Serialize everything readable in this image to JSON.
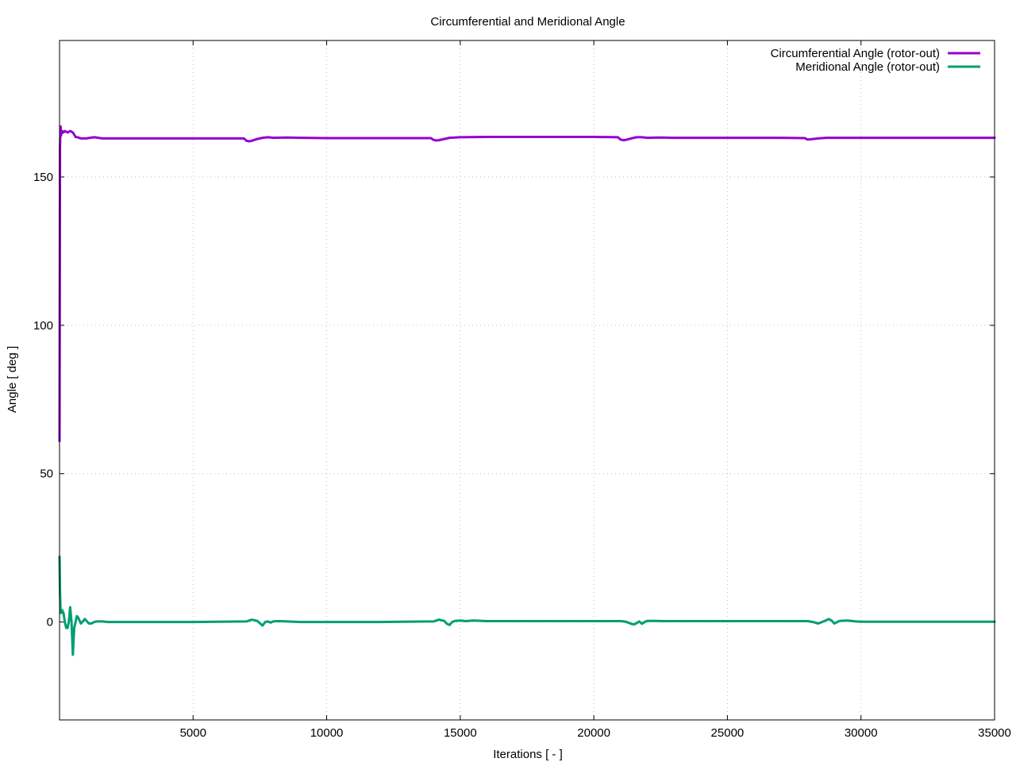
{
  "chart_data": {
    "type": "line",
    "title": "Circumferential and Meridional Angle",
    "xlabel": "Iterations [ - ]",
    "ylabel": "Angle [ deg ]",
    "xlim": [
      1,
      35000
    ],
    "ylim": [
      -33,
      196
    ],
    "x_ticks": [
      5000,
      10000,
      15000,
      20000,
      25000,
      30000,
      35000
    ],
    "y_ticks": [
      0,
      50,
      100,
      150
    ],
    "grid": true,
    "legend_position": "top-right",
    "series": [
      {
        "name": "Circumferential Angle (rotor-out)",
        "color": "#9400d3",
        "x": [
          1,
          20,
          40,
          60,
          80,
          100,
          150,
          200,
          300,
          400,
          500,
          600,
          700,
          800,
          1000,
          1300,
          1600,
          2000,
          3000,
          5000,
          6900,
          7000,
          7100,
          7200,
          7400,
          7600,
          7800,
          8000,
          8500,
          9000,
          10000,
          12000,
          13900,
          14000,
          14100,
          14200,
          14400,
          14600,
          14800,
          15000,
          16000,
          18000,
          20000,
          20900,
          21000,
          21100,
          21200,
          21400,
          21600,
          21800,
          22000,
          22500,
          23000,
          25000,
          27000,
          27900,
          28000,
          28100,
          28200,
          28400,
          28700,
          29000,
          29500,
          30000,
          32000,
          34000,
          35000
        ],
        "y": [
          61,
          160,
          167,
          164,
          165,
          165.5,
          165,
          165.5,
          165,
          165.5,
          165,
          163.5,
          163.3,
          163,
          163,
          163.4,
          163,
          163,
          163,
          163,
          163,
          162.2,
          162,
          162.2,
          162.8,
          163.2,
          163.4,
          163.2,
          163.3,
          163.2,
          163.1,
          163.1,
          163.1,
          162.5,
          162.3,
          162.4,
          162.8,
          163.2,
          163.3,
          163.4,
          163.5,
          163.5,
          163.5,
          163.4,
          162.6,
          162.4,
          162.5,
          163,
          163.4,
          163.4,
          163.2,
          163.3,
          163.2,
          163.2,
          163.2,
          163.1,
          162.6,
          162.7,
          162.8,
          163,
          163.2,
          163.2,
          163.2,
          163.2,
          163.2,
          163.2,
          163.2
        ]
      },
      {
        "name": "Meridional Angle (rotor-out)",
        "color": "#009e73",
        "x": [
          1,
          20,
          40,
          60,
          100,
          150,
          200,
          250,
          300,
          350,
          400,
          450,
          500,
          550,
          600,
          650,
          700,
          750,
          800,
          850,
          900,
          950,
          1000,
          1100,
          1200,
          1300,
          1400,
          1600,
          1800,
          2000,
          2500,
          3000,
          5000,
          7000,
          7200,
          7400,
          7500,
          7600,
          7700,
          7800,
          7900,
          8000,
          8200,
          8500,
          9000,
          10000,
          12000,
          14000,
          14200,
          14400,
          14500,
          14600,
          14700,
          14800,
          15000,
          15200,
          15500,
          16000,
          18000,
          20000,
          21000,
          21200,
          21400,
          21500,
          21600,
          21700,
          21800,
          21900,
          22000,
          22300,
          22600,
          23000,
          25000,
          27000,
          28000,
          28200,
          28400,
          28600,
          28800,
          28900,
          29000,
          29200,
          29500,
          29800,
          30000,
          32000,
          35000
        ],
        "y": [
          22,
          10,
          4,
          3,
          4,
          3,
          0,
          -2,
          -2,
          0,
          5,
          0,
          -11,
          -2,
          0,
          2,
          1.5,
          0.5,
          -0.5,
          0,
          0.5,
          1,
          0.5,
          -0.5,
          -0.5,
          0,
          0.2,
          0.2,
          0,
          0,
          0,
          0,
          0,
          0.2,
          0.8,
          0.4,
          -0.4,
          -1.2,
          0,
          0.2,
          -0.2,
          0.2,
          0.3,
          0.2,
          0,
          0,
          0,
          0.2,
          0.8,
          0.4,
          -0.6,
          -1,
          0,
          0.4,
          0.5,
          0.3,
          0.5,
          0.3,
          0.3,
          0.3,
          0.3,
          0.1,
          -0.6,
          -0.8,
          -0.4,
          0.2,
          -0.6,
          0,
          0.4,
          0.4,
          0.3,
          0.3,
          0.3,
          0.3,
          0.3,
          0,
          -0.5,
          0.2,
          1,
          0.5,
          -0.5,
          0.4,
          0.5,
          0.2,
          0.1,
          0.1,
          0.1
        ]
      }
    ]
  }
}
